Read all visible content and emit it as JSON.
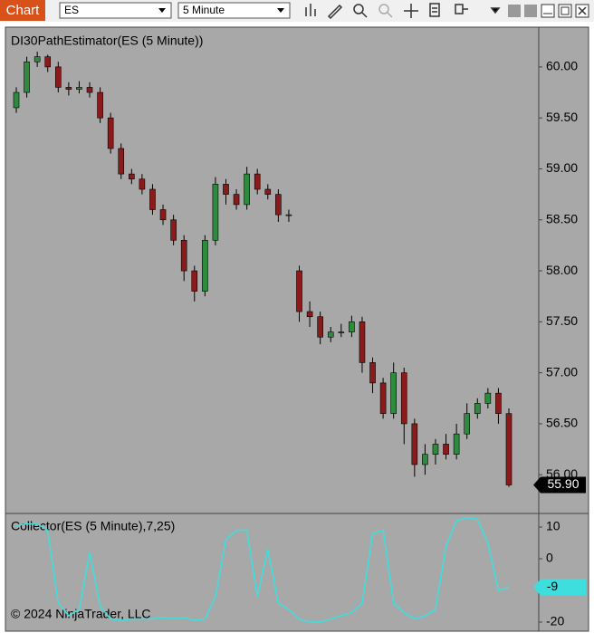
{
  "toolbar": {
    "button": "Chart",
    "instrument": "ES",
    "interval": "5 Minute"
  },
  "copyright": "© 2024 NinjaTrader, LLC",
  "chart_data": [
    {
      "type": "candlestick",
      "title": "DI30PathEstimator(ES (5 Minute))",
      "up_color": "#2e8b3e",
      "down_color": "#8b1a1a",
      "open": [
        59.6,
        59.75,
        60.05,
        60.1,
        60.0,
        59.8,
        59.78,
        59.8,
        59.75,
        59.5,
        59.2,
        58.95,
        58.9,
        58.8,
        58.6,
        58.5,
        58.3,
        58.0,
        57.8,
        58.3,
        58.85,
        58.75,
        58.65,
        58.95,
        58.8,
        58.75,
        58.55,
        58.0,
        57.6,
        57.55,
        57.35,
        57.4,
        57.4,
        57.5,
        57.1,
        56.9,
        56.6,
        57.0,
        56.5,
        56.1,
        56.2,
        56.3,
        56.2,
        56.4,
        56.6,
        56.7,
        56.8,
        56.6
      ],
      "high": [
        59.8,
        60.1,
        60.15,
        60.12,
        60.05,
        59.85,
        59.86,
        59.85,
        59.8,
        59.55,
        59.25,
        59.0,
        58.95,
        58.85,
        58.65,
        58.55,
        58.35,
        58.05,
        58.35,
        58.92,
        58.9,
        58.8,
        59.02,
        59.0,
        58.85,
        58.8,
        58.6,
        58.05,
        57.7,
        57.6,
        57.45,
        57.48,
        57.56,
        57.55,
        57.15,
        56.95,
        57.1,
        57.05,
        56.55,
        56.3,
        56.35,
        56.4,
        56.5,
        56.7,
        56.75,
        56.85,
        56.85,
        56.65
      ],
      "low": [
        59.55,
        59.7,
        60.0,
        59.95,
        59.75,
        59.72,
        59.74,
        59.7,
        59.45,
        59.15,
        58.9,
        58.85,
        58.75,
        58.55,
        58.45,
        58.25,
        57.9,
        57.7,
        57.75,
        58.25,
        58.65,
        58.6,
        58.6,
        58.75,
        58.7,
        58.48,
        58.48,
        57.5,
        57.45,
        57.28,
        57.3,
        57.35,
        57.35,
        57.0,
        56.8,
        56.55,
        56.55,
        56.3,
        55.98,
        56.0,
        56.1,
        56.15,
        56.15,
        56.35,
        56.55,
        56.65,
        56.5,
        55.88
      ],
      "close": [
        59.75,
        60.05,
        60.1,
        60.0,
        59.8,
        59.78,
        59.8,
        59.75,
        59.5,
        59.2,
        58.95,
        58.9,
        58.8,
        58.6,
        58.5,
        58.3,
        58.0,
        57.8,
        58.3,
        58.85,
        58.75,
        58.65,
        58.95,
        58.8,
        58.75,
        58.55,
        58.55,
        57.6,
        57.55,
        57.35,
        57.4,
        57.4,
        57.5,
        57.1,
        56.9,
        56.6,
        57.0,
        56.5,
        56.1,
        56.2,
        56.3,
        56.2,
        56.4,
        56.6,
        56.7,
        56.8,
        56.6,
        55.9
      ],
      "last_value_label": "55.90",
      "ylim": [
        55.62,
        60.39
      ],
      "yticks": [
        {
          "value": 56,
          "label": "56.00"
        },
        {
          "value": 56.5,
          "label": "56.50"
        },
        {
          "value": 57,
          "label": "57.00"
        },
        {
          "value": 57.5,
          "label": "57.50"
        },
        {
          "value": 58,
          "label": "58.00"
        },
        {
          "value": 58.5,
          "label": "58.50"
        },
        {
          "value": 59,
          "label": "59.00"
        },
        {
          "value": 59.5,
          "label": "59.50"
        },
        {
          "value": 60,
          "label": "60.00"
        }
      ]
    },
    {
      "type": "line",
      "title": "Collector(ES (5 Minute),7,25)",
      "color": "#3fdede",
      "values": [
        10.5,
        11,
        11,
        9,
        -14,
        -18,
        -16,
        2,
        -15,
        -19,
        -19.5,
        -19,
        -19,
        -19,
        -18.5,
        -19,
        -18.5,
        -19.5,
        -19,
        -12,
        6,
        9,
        9,
        -12,
        3,
        -14,
        -16,
        -19,
        -20,
        -20,
        -19,
        -18,
        -17,
        -14,
        8,
        9,
        -14,
        -17,
        -19,
        -18,
        -16,
        4,
        12,
        13,
        12.5,
        5,
        -10,
        -9
      ],
      "ylim": [
        -22.3,
        14.3
      ],
      "yticks": [
        10,
        0,
        -20
      ]
    }
  ]
}
